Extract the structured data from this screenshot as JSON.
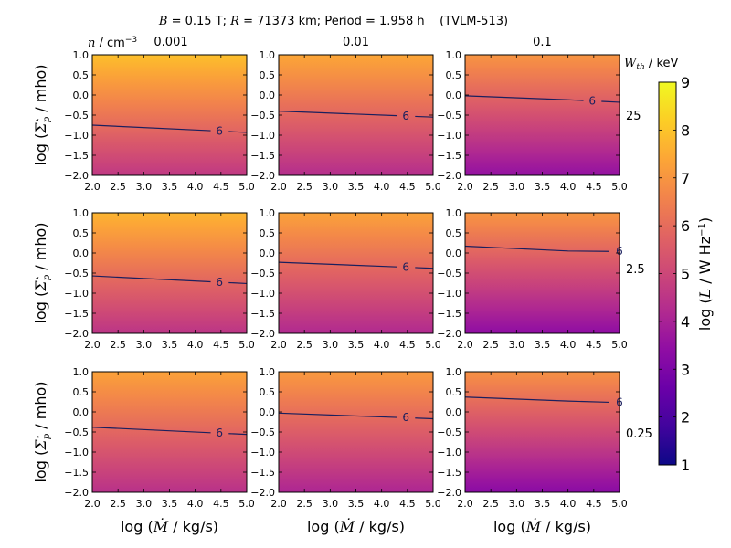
{
  "chart_data": {
    "type": "heatmap",
    "title": {
      "b_sym": "B",
      "b_val": " = 0.15 T; ",
      "r_sym": "R",
      "r_val": " = 71373 km; Period = 1.958 h    (TVLM-513)"
    },
    "n_label": {
      "sym": "n",
      "unit": " / cm",
      "exp": "−3"
    },
    "column_values": [
      "0.001",
      "0.01",
      "0.1"
    ],
    "w_label": {
      "sym": "W",
      "sub": "th",
      "unit": " / keV"
    },
    "row_values": [
      "25",
      "2.5",
      "0.25"
    ],
    "xlabel": {
      "pre": "log (",
      "sym": "Ṁ",
      "post": " / kg/s)"
    },
    "ylabel": {
      "pre": "log (",
      "sym": "Σ",
      "sup": "⋆",
      "sub": "p",
      "post": " / mho)"
    },
    "cbar_label": {
      "pre": "log (",
      "sym": "L",
      "post": " / W Hz",
      "exp": "−1",
      "close": ")"
    },
    "x_ticks": [
      "2.0",
      "2.5",
      "3.0",
      "3.5",
      "4.0",
      "4.5",
      "5.0"
    ],
    "y_ticks": [
      "1.0",
      "0.5",
      "0.0",
      "−0.5",
      "−1.0",
      "−1.5",
      "−2.0"
    ],
    "cbar_ticks": [
      "1",
      "2",
      "3",
      "4",
      "5",
      "6",
      "7",
      "8",
      "9"
    ],
    "xlim": [
      2.0,
      5.0
    ],
    "ylim": [
      -2.0,
      1.0
    ],
    "clim": [
      1,
      9
    ],
    "contour_level": 6,
    "contour_label": "6",
    "colormap": "plasma",
    "contour_color": "#1a1f5e",
    "panels": [
      {
        "row": 0,
        "col": 0,
        "color_top": 7.9,
        "color_bottom": 4.6,
        "contour": [
          [
            2.0,
            -0.75
          ],
          [
            5.0,
            -0.93
          ]
        ],
        "label_x": 4.4
      },
      {
        "row": 0,
        "col": 1,
        "color_top": 7.4,
        "color_bottom": 4.3,
        "contour": [
          [
            2.0,
            -0.4
          ],
          [
            5.0,
            -0.55
          ]
        ],
        "label_x": 4.4
      },
      {
        "row": 0,
        "col": 2,
        "color_top": 7.0,
        "color_bottom": 3.5,
        "contour": [
          [
            2.0,
            -0.02
          ],
          [
            4.0,
            -0.12
          ],
          [
            5.0,
            -0.18
          ]
        ],
        "label_x": 4.4
      },
      {
        "row": 1,
        "col": 0,
        "color_top": 7.7,
        "color_bottom": 4.5,
        "contour": [
          [
            2.0,
            -0.57
          ],
          [
            5.0,
            -0.76
          ]
        ],
        "label_x": 4.4
      },
      {
        "row": 1,
        "col": 1,
        "color_top": 7.3,
        "color_bottom": 4.2,
        "contour": [
          [
            2.0,
            -0.23
          ],
          [
            5.0,
            -0.38
          ]
        ],
        "label_x": 4.4
      },
      {
        "row": 1,
        "col": 2,
        "color_top": 7.0,
        "color_bottom": 3.4,
        "contour": [
          [
            2.0,
            0.17
          ],
          [
            4.0,
            0.05
          ],
          [
            4.8,
            0.04
          ]
        ],
        "label_x": 4.93
      },
      {
        "row": 2,
        "col": 0,
        "color_top": 7.3,
        "color_bottom": 4.4,
        "contour": [
          [
            2.0,
            -0.38
          ],
          [
            5.0,
            -0.56
          ]
        ],
        "label_x": 4.4
      },
      {
        "row": 2,
        "col": 1,
        "color_top": 7.1,
        "color_bottom": 4.1,
        "contour": [
          [
            2.0,
            -0.03
          ],
          [
            5.0,
            -0.17
          ]
        ],
        "label_x": 4.4
      },
      {
        "row": 2,
        "col": 2,
        "color_top": 6.9,
        "color_bottom": 3.3,
        "contour": [
          [
            2.0,
            0.37
          ],
          [
            4.0,
            0.27
          ],
          [
            4.8,
            0.24
          ]
        ],
        "label_x": 4.93
      }
    ]
  }
}
